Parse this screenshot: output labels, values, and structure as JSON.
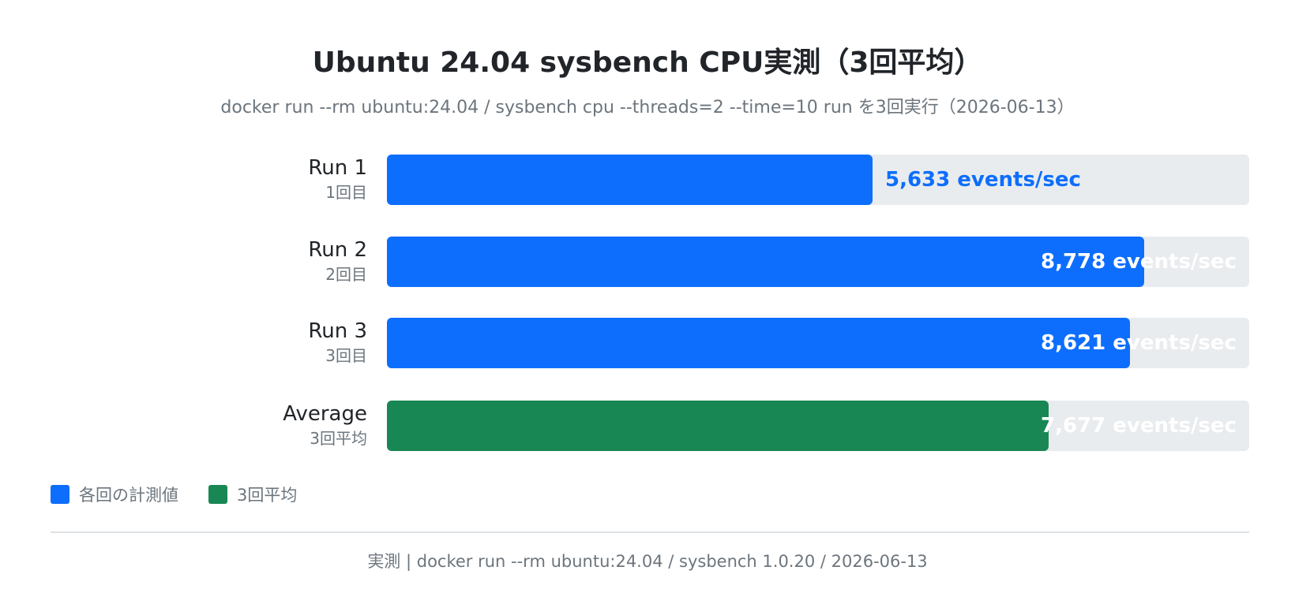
{
  "chart_data": {
    "type": "bar",
    "orientation": "horizontal",
    "title": "Ubuntu 24.04 sysbench CPU実測（3回平均）",
    "subtitle": "docker run --rm ubuntu:24.04 / sysbench cpu --threads=2 --time=10 run を3回実行（2026-06-13）",
    "categories": [
      {
        "label": "Run 1",
        "sublabel": "1回目",
        "value": 5633,
        "value_label": "5,633 events/sec",
        "series": "各回の計測値"
      },
      {
        "label": "Run 2",
        "sublabel": "2回目",
        "value": 8778,
        "value_label": "8,778 events/sec",
        "series": "各回の計測値"
      },
      {
        "label": "Run 3",
        "sublabel": "3回目",
        "value": 8621,
        "value_label": "8,621 events/sec",
        "series": "各回の計測値"
      },
      {
        "label": "Average",
        "sublabel": "3回平均",
        "value": 7677,
        "value_label": "7,677 events/sec",
        "series": "3回平均"
      }
    ],
    "xlim": [
      0,
      10000
    ],
    "grid": false,
    "legend_position": "bottom-left",
    "legend": [
      {
        "name": "各回の計測値",
        "color": "#0d6efd"
      },
      {
        "name": "3回平均",
        "color": "#198754"
      }
    ]
  },
  "colors": {
    "run": "#0d6efd",
    "average": "#198754",
    "track": "#e9ecef"
  },
  "footer": "実測 | docker run --rm ubuntu:24.04 / sysbench 1.0.20 / 2026-06-13"
}
